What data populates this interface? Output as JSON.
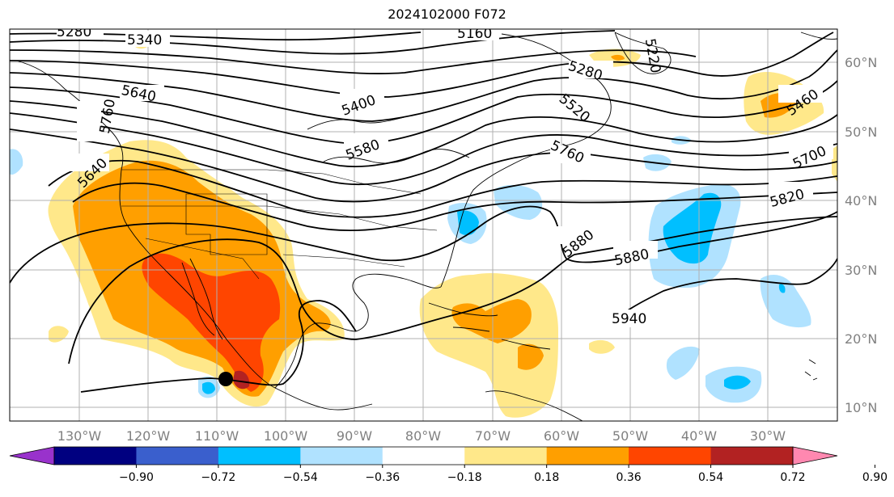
{
  "title": "2024102000 F072",
  "map": {
    "lon_labels": [
      "130°W",
      "120°W",
      "110°W",
      "100°W",
      "90°W",
      "80°W",
      "70°W",
      "60°W",
      "50°W",
      "40°W",
      "30°W"
    ],
    "lat_labels": [
      "60°N",
      "50°N",
      "40°N",
      "30°N",
      "20°N",
      "10°N"
    ],
    "contour_labels": [
      "5280",
      "5340",
      "5160",
      "5220",
      "5640",
      "5400",
      "5280",
      "5460",
      "5700",
      "5580",
      "5520",
      "5640",
      "5760",
      "5820",
      "5880",
      "5880",
      "5940",
      "5760"
    ]
  },
  "colorbar": {
    "colors": [
      "#9932cc",
      "#000080",
      "#3a5fcd",
      "#00bfff",
      "#b0e2ff",
      "#ffffff",
      "#ffe88a",
      "#ff9f00",
      "#ff4500",
      "#b22222",
      "#ff88b0"
    ],
    "ticks": [
      "−0.90",
      "−0.72",
      "−0.54",
      "−0.36",
      "−0.18",
      "0.18",
      "0.36",
      "0.54",
      "0.72",
      "0.90"
    ]
  },
  "colors": {
    "grid": "#b0b0b0",
    "contour": "#000000",
    "coast": "#000000"
  }
}
